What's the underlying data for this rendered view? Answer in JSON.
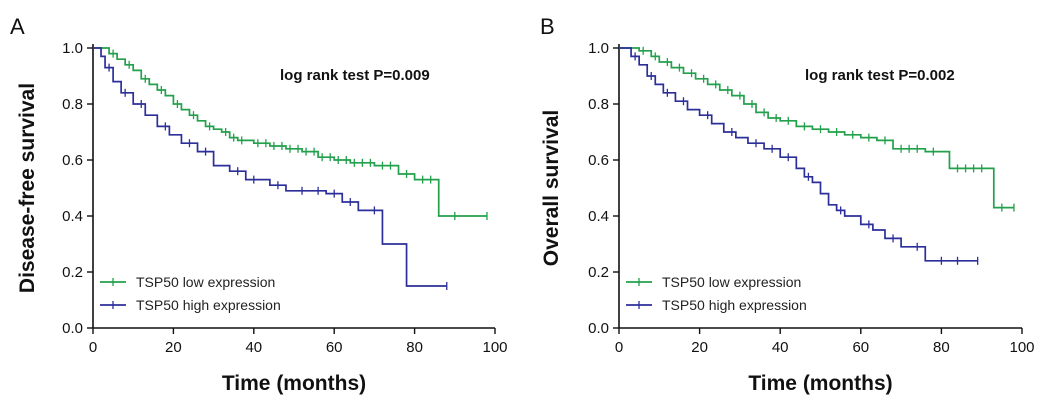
{
  "chart_data": [
    {
      "type": "line",
      "panel_label": "A",
      "annotation": "log rank test P=0.009",
      "xlabel": "Time (months)",
      "ylabel": "Disease-free survival",
      "xlim": [
        0,
        100
      ],
      "ylim": [
        0.0,
        1.0
      ],
      "xticks": [
        "0",
        "20",
        "40",
        "60",
        "80",
        "100"
      ],
      "yticks": [
        "0.0",
        "0.2",
        "0.4",
        "0.6",
        "0.8",
        "1.0"
      ],
      "legend_position": "bottom-left",
      "series": [
        {
          "name": "TSP50 low expression",
          "color": "#22a04b",
          "steps": [
            [
              0,
              1.0
            ],
            [
              4,
              0.98
            ],
            [
              6,
              0.96
            ],
            [
              8,
              0.94
            ],
            [
              10,
              0.92
            ],
            [
              12,
              0.89
            ],
            [
              14,
              0.87
            ],
            [
              16,
              0.85
            ],
            [
              18,
              0.83
            ],
            [
              20,
              0.8
            ],
            [
              22,
              0.78
            ],
            [
              24,
              0.76
            ],
            [
              26,
              0.74
            ],
            [
              28,
              0.72
            ],
            [
              30,
              0.71
            ],
            [
              32,
              0.7
            ],
            [
              34,
              0.68
            ],
            [
              36,
              0.67
            ],
            [
              40,
              0.66
            ],
            [
              44,
              0.65
            ],
            [
              48,
              0.64
            ],
            [
              52,
              0.63
            ],
            [
              56,
              0.61
            ],
            [
              60,
              0.6
            ],
            [
              64,
              0.59
            ],
            [
              70,
              0.58
            ],
            [
              76,
              0.55
            ],
            [
              80,
              0.53
            ],
            [
              86,
              0.4
            ],
            [
              98,
              0.4
            ]
          ],
          "censor_x": [
            5,
            9,
            13,
            17,
            21,
            25,
            29,
            33,
            35,
            37,
            41,
            43,
            45,
            47,
            49,
            51,
            53,
            55,
            57,
            59,
            61,
            63,
            65,
            67,
            69,
            72,
            74,
            78,
            82,
            84,
            90,
            98
          ]
        },
        {
          "name": "TSP50 high expression",
          "color": "#2c2f9a",
          "steps": [
            [
              0,
              1.0
            ],
            [
              2,
              0.97
            ],
            [
              3,
              0.93
            ],
            [
              5,
              0.88
            ],
            [
              7,
              0.84
            ],
            [
              10,
              0.8
            ],
            [
              13,
              0.76
            ],
            [
              16,
              0.72
            ],
            [
              19,
              0.69
            ],
            [
              22,
              0.66
            ],
            [
              26,
              0.63
            ],
            [
              30,
              0.58
            ],
            [
              34,
              0.56
            ],
            [
              38,
              0.53
            ],
            [
              44,
              0.51
            ],
            [
              48,
              0.49
            ],
            [
              58,
              0.48
            ],
            [
              62,
              0.45
            ],
            [
              66,
              0.42
            ],
            [
              72,
              0.3
            ],
            [
              78,
              0.15
            ],
            [
              88,
              0.15
            ]
          ],
          "censor_x": [
            4,
            8,
            12,
            18,
            24,
            28,
            36,
            40,
            46,
            52,
            56,
            60,
            64,
            70,
            88
          ]
        }
      ]
    },
    {
      "type": "line",
      "panel_label": "B",
      "annotation": "log rank test P=0.002",
      "xlabel": "Time (months)",
      "ylabel": "Overall survival",
      "xlim": [
        0,
        100
      ],
      "ylim": [
        0.0,
        1.0
      ],
      "xticks": [
        "0",
        "20",
        "40",
        "60",
        "80",
        "100"
      ],
      "yticks": [
        "0.0",
        "0.2",
        "0.4",
        "0.6",
        "0.8",
        "1.0"
      ],
      "legend_position": "bottom-left",
      "series": [
        {
          "name": "TSP50 low expression",
          "color": "#22a04b",
          "steps": [
            [
              0,
              1.0
            ],
            [
              5,
              0.99
            ],
            [
              8,
              0.97
            ],
            [
              10,
              0.95
            ],
            [
              13,
              0.93
            ],
            [
              16,
              0.91
            ],
            [
              19,
              0.89
            ],
            [
              22,
              0.87
            ],
            [
              25,
              0.85
            ],
            [
              28,
              0.83
            ],
            [
              31,
              0.8
            ],
            [
              34,
              0.77
            ],
            [
              37,
              0.75
            ],
            [
              40,
              0.74
            ],
            [
              44,
              0.72
            ],
            [
              48,
              0.71
            ],
            [
              52,
              0.7
            ],
            [
              56,
              0.69
            ],
            [
              60,
              0.68
            ],
            [
              64,
              0.67
            ],
            [
              68,
              0.64
            ],
            [
              76,
              0.63
            ],
            [
              82,
              0.57
            ],
            [
              93,
              0.43
            ],
            [
              98,
              0.43
            ]
          ],
          "censor_x": [
            6,
            9,
            12,
            15,
            18,
            21,
            24,
            27,
            30,
            33,
            36,
            39,
            42,
            46,
            50,
            54,
            58,
            62,
            66,
            70,
            72,
            74,
            78,
            84,
            86,
            88,
            90,
            95,
            98
          ]
        },
        {
          "name": "TSP50 high expression",
          "color": "#2c2f9a",
          "steps": [
            [
              0,
              1.0
            ],
            [
              3,
              0.97
            ],
            [
              5,
              0.94
            ],
            [
              7,
              0.9
            ],
            [
              9,
              0.87
            ],
            [
              11,
              0.84
            ],
            [
              14,
              0.81
            ],
            [
              17,
              0.78
            ],
            [
              20,
              0.76
            ],
            [
              23,
              0.73
            ],
            [
              26,
              0.7
            ],
            [
              29,
              0.68
            ],
            [
              32,
              0.66
            ],
            [
              36,
              0.64
            ],
            [
              40,
              0.61
            ],
            [
              44,
              0.57
            ],
            [
              46,
              0.54
            ],
            [
              48,
              0.52
            ],
            [
              50,
              0.48
            ],
            [
              52,
              0.44
            ],
            [
              54,
              0.42
            ],
            [
              56,
              0.4
            ],
            [
              60,
              0.37
            ],
            [
              63,
              0.35
            ],
            [
              66,
              0.32
            ],
            [
              70,
              0.29
            ],
            [
              76,
              0.24
            ],
            [
              89,
              0.24
            ]
          ],
          "censor_x": [
            4,
            8,
            12,
            16,
            22,
            28,
            34,
            38,
            42,
            47,
            55,
            62,
            68,
            74,
            80,
            84,
            89
          ]
        }
      ]
    }
  ]
}
